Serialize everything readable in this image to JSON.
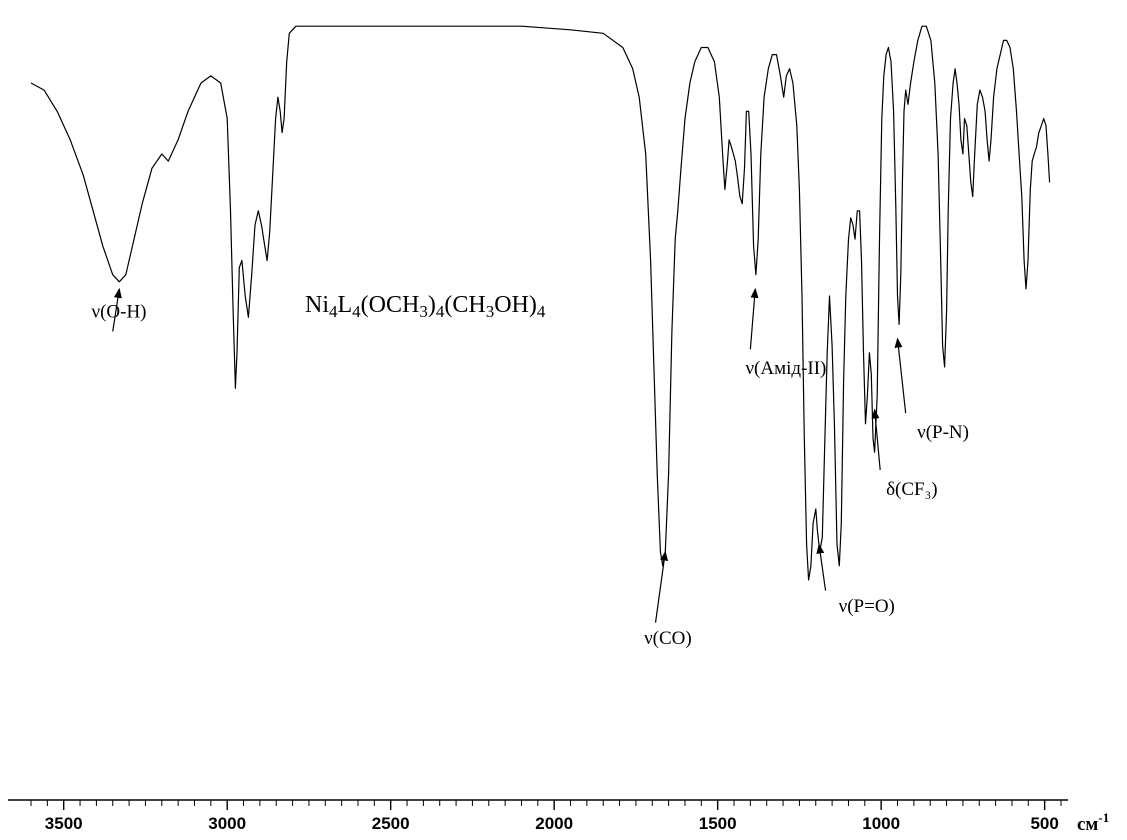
{
  "chart_data": {
    "type": "line",
    "title": "",
    "compound_label": "Ni4L4(OCH3)4(CH3OH)4",
    "compound_parts": [
      {
        "t": "Ni",
        "sub": false
      },
      {
        "t": "4",
        "sub": true
      },
      {
        "t": "L",
        "sub": false
      },
      {
        "t": "4",
        "sub": true
      },
      {
        "t": "(OCH",
        "sub": false
      },
      {
        "t": "3",
        "sub": true
      },
      {
        "t": ")",
        "sub": false
      },
      {
        "t": "4",
        "sub": true
      },
      {
        "t": "(CH",
        "sub": false
      },
      {
        "t": "3",
        "sub": true
      },
      {
        "t": "OH)",
        "sub": false
      },
      {
        "t": "4",
        "sub": true
      }
    ],
    "xlabel_unit": "см",
    "xlabel_unit_sup": "-1",
    "xlim": [
      3600,
      450
    ],
    "x_reversed": true,
    "x_ticks": [
      3500,
      3000,
      2500,
      2000,
      1500,
      1000,
      500
    ],
    "x_tick_labels": [
      "3500",
      "3000",
      "2500",
      "2000",
      "1500",
      "1000",
      "500"
    ],
    "ylim": [
      0,
      100
    ],
    "y_axis_shown": false,
    "grid": false,
    "series": [
      {
        "color": "#000000",
        "points": [
          [
            3600,
            90
          ],
          [
            3560,
            89
          ],
          [
            3520,
            86
          ],
          [
            3480,
            82
          ],
          [
            3440,
            77
          ],
          [
            3410,
            72
          ],
          [
            3380,
            67
          ],
          [
            3350,
            63
          ],
          [
            3330,
            62
          ],
          [
            3310,
            63
          ],
          [
            3290,
            67
          ],
          [
            3260,
            73
          ],
          [
            3230,
            78
          ],
          [
            3200,
            80
          ],
          [
            3180,
            79
          ],
          [
            3150,
            82
          ],
          [
            3120,
            86
          ],
          [
            3080,
            90
          ],
          [
            3050,
            91
          ],
          [
            3020,
            90
          ],
          [
            3000,
            85
          ],
          [
            2990,
            72
          ],
          [
            2982,
            58
          ],
          [
            2975,
            47
          ],
          [
            2970,
            52
          ],
          [
            2963,
            64
          ],
          [
            2955,
            65
          ],
          [
            2945,
            60
          ],
          [
            2935,
            57
          ],
          [
            2925,
            63
          ],
          [
            2915,
            70
          ],
          [
            2905,
            72
          ],
          [
            2895,
            70
          ],
          [
            2885,
            67
          ],
          [
            2878,
            65
          ],
          [
            2870,
            69
          ],
          [
            2862,
            76
          ],
          [
            2852,
            85
          ],
          [
            2845,
            88
          ],
          [
            2838,
            86
          ],
          [
            2832,
            83
          ],
          [
            2826,
            85
          ],
          [
            2818,
            93
          ],
          [
            2810,
            97
          ],
          [
            2790,
            98
          ],
          [
            2700,
            98
          ],
          [
            2500,
            98
          ],
          [
            2300,
            98
          ],
          [
            2100,
            98
          ],
          [
            1950,
            97.5
          ],
          [
            1850,
            97
          ],
          [
            1790,
            95
          ],
          [
            1760,
            92
          ],
          [
            1740,
            88
          ],
          [
            1720,
            80
          ],
          [
            1705,
            65
          ],
          [
            1695,
            50
          ],
          [
            1685,
            35
          ],
          [
            1675,
            24
          ],
          [
            1668,
            22
          ],
          [
            1660,
            24
          ],
          [
            1650,
            35
          ],
          [
            1640,
            55
          ],
          [
            1630,
            68
          ],
          [
            1622,
            72
          ],
          [
            1612,
            78
          ],
          [
            1600,
            85
          ],
          [
            1585,
            90
          ],
          [
            1570,
            93
          ],
          [
            1550,
            95
          ],
          [
            1530,
            95
          ],
          [
            1510,
            93
          ],
          [
            1495,
            88
          ],
          [
            1485,
            80
          ],
          [
            1478,
            75
          ],
          [
            1470,
            79
          ],
          [
            1465,
            82
          ],
          [
            1458,
            81
          ],
          [
            1452,
            80
          ],
          [
            1446,
            79
          ],
          [
            1440,
            77
          ],
          [
            1432,
            74
          ],
          [
            1425,
            73
          ],
          [
            1418,
            78
          ],
          [
            1412,
            86
          ],
          [
            1405,
            86
          ],
          [
            1398,
            80
          ],
          [
            1390,
            67
          ],
          [
            1383,
            63
          ],
          [
            1376,
            68
          ],
          [
            1368,
            80
          ],
          [
            1358,
            88
          ],
          [
            1345,
            92
          ],
          [
            1333,
            94
          ],
          [
            1320,
            94
          ],
          [
            1308,
            91
          ],
          [
            1298,
            88
          ],
          [
            1290,
            91
          ],
          [
            1280,
            92
          ],
          [
            1270,
            90
          ],
          [
            1258,
            84
          ],
          [
            1250,
            75
          ],
          [
            1242,
            60
          ],
          [
            1235,
            40
          ],
          [
            1228,
            25
          ],
          [
            1222,
            20
          ],
          [
            1215,
            22
          ],
          [
            1208,
            28
          ],
          [
            1200,
            30
          ],
          [
            1195,
            27
          ],
          [
            1188,
            24
          ],
          [
            1180,
            26
          ],
          [
            1172,
            40
          ],
          [
            1165,
            52
          ],
          [
            1158,
            60
          ],
          [
            1150,
            53
          ],
          [
            1143,
            42
          ],
          [
            1135,
            25
          ],
          [
            1128,
            22
          ],
          [
            1122,
            28
          ],
          [
            1115,
            48
          ],
          [
            1108,
            60
          ],
          [
            1100,
            68
          ],
          [
            1093,
            71
          ],
          [
            1086,
            70
          ],
          [
            1080,
            68
          ],
          [
            1073,
            72
          ],
          [
            1066,
            72
          ],
          [
            1060,
            65
          ],
          [
            1054,
            52
          ],
          [
            1048,
            42
          ],
          [
            1042,
            46
          ],
          [
            1036,
            52
          ],
          [
            1030,
            49
          ],
          [
            1025,
            40
          ],
          [
            1020,
            38
          ],
          [
            1012,
            46
          ],
          [
            1005,
            68
          ],
          [
            998,
            85
          ],
          [
            992,
            91
          ],
          [
            985,
            94
          ],
          [
            978,
            95
          ],
          [
            970,
            93
          ],
          [
            962,
            86
          ],
          [
            955,
            72
          ],
          [
            950,
            60
          ],
          [
            945,
            56
          ],
          [
            940,
            63
          ],
          [
            935,
            76
          ],
          [
            930,
            86
          ],
          [
            925,
            89
          ],
          [
            918,
            87
          ],
          [
            910,
            90
          ],
          [
            900,
            93
          ],
          [
            888,
            96
          ],
          [
            875,
            98
          ],
          [
            862,
            98
          ],
          [
            848,
            96
          ],
          [
            836,
            90
          ],
          [
            826,
            80
          ],
          [
            818,
            65
          ],
          [
            812,
            53
          ],
          [
            806,
            50
          ],
          [
            800,
            58
          ],
          [
            795,
            72
          ],
          [
            788,
            85
          ],
          [
            780,
            90
          ],
          [
            774,
            92
          ],
          [
            768,
            90
          ],
          [
            762,
            87
          ],
          [
            756,
            82
          ],
          [
            750,
            80
          ],
          [
            745,
            85
          ],
          [
            738,
            84
          ],
          [
            732,
            80
          ],
          [
            726,
            76
          ],
          [
            720,
            74
          ],
          [
            714,
            80
          ],
          [
            706,
            87
          ],
          [
            698,
            89
          ],
          [
            690,
            88
          ],
          [
            682,
            86
          ],
          [
            676,
            82
          ],
          [
            670,
            79
          ],
          [
            664,
            82
          ],
          [
            656,
            88
          ],
          [
            646,
            92
          ],
          [
            636,
            94
          ],
          [
            626,
            96
          ],
          [
            616,
            96
          ],
          [
            606,
            95
          ],
          [
            596,
            92
          ],
          [
            586,
            86
          ],
          [
            578,
            80
          ],
          [
            570,
            74
          ],
          [
            563,
            65
          ],
          [
            557,
            61
          ],
          [
            551,
            65
          ],
          [
            544,
            75
          ],
          [
            538,
            79
          ],
          [
            532,
            80
          ],
          [
            525,
            81
          ],
          [
            518,
            83
          ],
          [
            510,
            84
          ],
          [
            503,
            85
          ],
          [
            496,
            84
          ],
          [
            490,
            80
          ],
          [
            485,
            76
          ]
        ]
      }
    ],
    "annotations": [
      {
        "label": "ν(O-H)",
        "text_x": 3415,
        "text_y": 57,
        "tip_x": 3330,
        "tip_y": 61,
        "tail_x": 3350,
        "tail_y": 55
      },
      {
        "label": "ν(CO)",
        "text_x": 1725,
        "text_y": 11,
        "tip_x": 1660,
        "tip_y": 24,
        "tail_x": 1690,
        "tail_y": 14
      },
      {
        "label": "ν(Амід-ІІ)",
        "text_x": 1415,
        "text_y": 49,
        "tip_x": 1385,
        "tip_y": 61,
        "tail_x": 1400,
        "tail_y": 52.5
      },
      {
        "label": "ν(P=O)",
        "text_x": 1130,
        "text_y": 15.5,
        "tip_x": 1190,
        "tip_y": 25,
        "tail_x": 1170,
        "tail_y": 18.5
      },
      {
        "label": "δ(CF₃)",
        "text_x": 985,
        "text_y": 32,
        "tip_x": 1020,
        "tip_y": 44,
        "tail_x": 1003,
        "tail_y": 35.5
      },
      {
        "label": "ν(P-N)",
        "text_x": 890,
        "text_y": 40,
        "tip_x": 950,
        "tip_y": 54,
        "tail_x": 925,
        "tail_y": 43.5
      }
    ]
  }
}
